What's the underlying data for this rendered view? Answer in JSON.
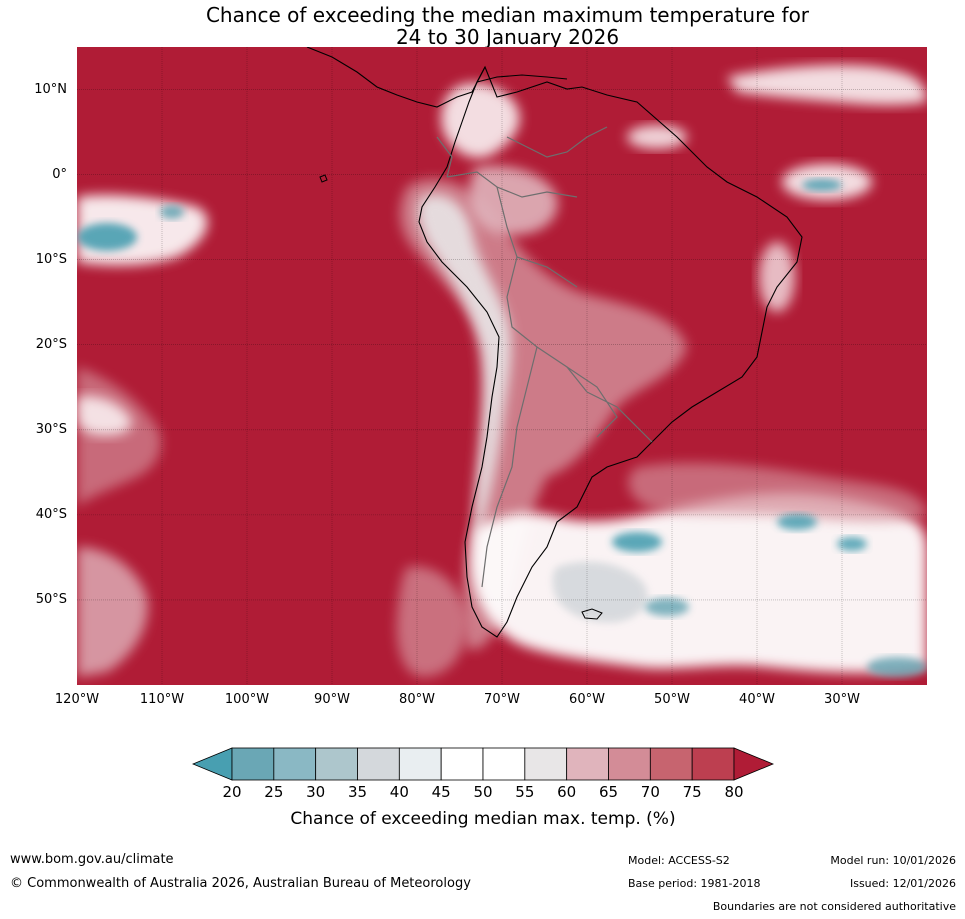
{
  "title": {
    "line1": "Chance of exceeding the median maximum temperature for",
    "line2": "24 to 30 January 2026"
  },
  "map": {
    "lat_range": [
      -60,
      15
    ],
    "lon_range": [
      -120,
      -20
    ],
    "lat_ticks": [
      {
        "value": 10,
        "label": "10°N"
      },
      {
        "value": 0,
        "label": "0°"
      },
      {
        "value": -10,
        "label": "10°S"
      },
      {
        "value": -20,
        "label": "20°S"
      },
      {
        "value": -30,
        "label": "30°S"
      },
      {
        "value": -40,
        "label": "40°S"
      },
      {
        "value": -50,
        "label": "50°S"
      }
    ],
    "lon_ticks": [
      {
        "value": -120,
        "label": "120°W"
      },
      {
        "value": -110,
        "label": "110°W"
      },
      {
        "value": -100,
        "label": "100°W"
      },
      {
        "value": -90,
        "label": "90°W"
      },
      {
        "value": -80,
        "label": "80°W"
      },
      {
        "value": -70,
        "label": "70°W"
      },
      {
        "value": -60,
        "label": "60°W"
      },
      {
        "value": -50,
        "label": "50°W"
      },
      {
        "value": -40,
        "label": "40°W"
      },
      {
        "value": -30,
        "label": "30°W"
      }
    ],
    "background_color": "#b01c36"
  },
  "colorbar": {
    "labels": [
      "20",
      "25",
      "30",
      "35",
      "40",
      "45",
      "50",
      "55",
      "60",
      "65",
      "70",
      "75",
      "80"
    ],
    "colors": [
      "#489fb1",
      "#6aa7b5",
      "#8ab8c4",
      "#adc6cc",
      "#d4d8dc",
      "#e9eef1",
      "#ffffff",
      "#ffffff",
      "#e8e6e7",
      "#e0b4bc",
      "#d38c97",
      "#c7646f",
      "#bd3f50",
      "#b01c36"
    ],
    "title": "Chance of exceeding median max. temp. (%)"
  },
  "footer": {
    "website": "www.bom.gov.au/climate",
    "copyright": "© Commonwealth of Australia 2026, Australian Bureau of Meteorology",
    "model": "Model: ACCESS-S2",
    "base_period": "Base period: 1981-2018",
    "model_run": "Model run: 10/01/2026",
    "issued": "Issued: 12/01/2026",
    "disclaimer": "Boundaries are not considered authoritative"
  }
}
